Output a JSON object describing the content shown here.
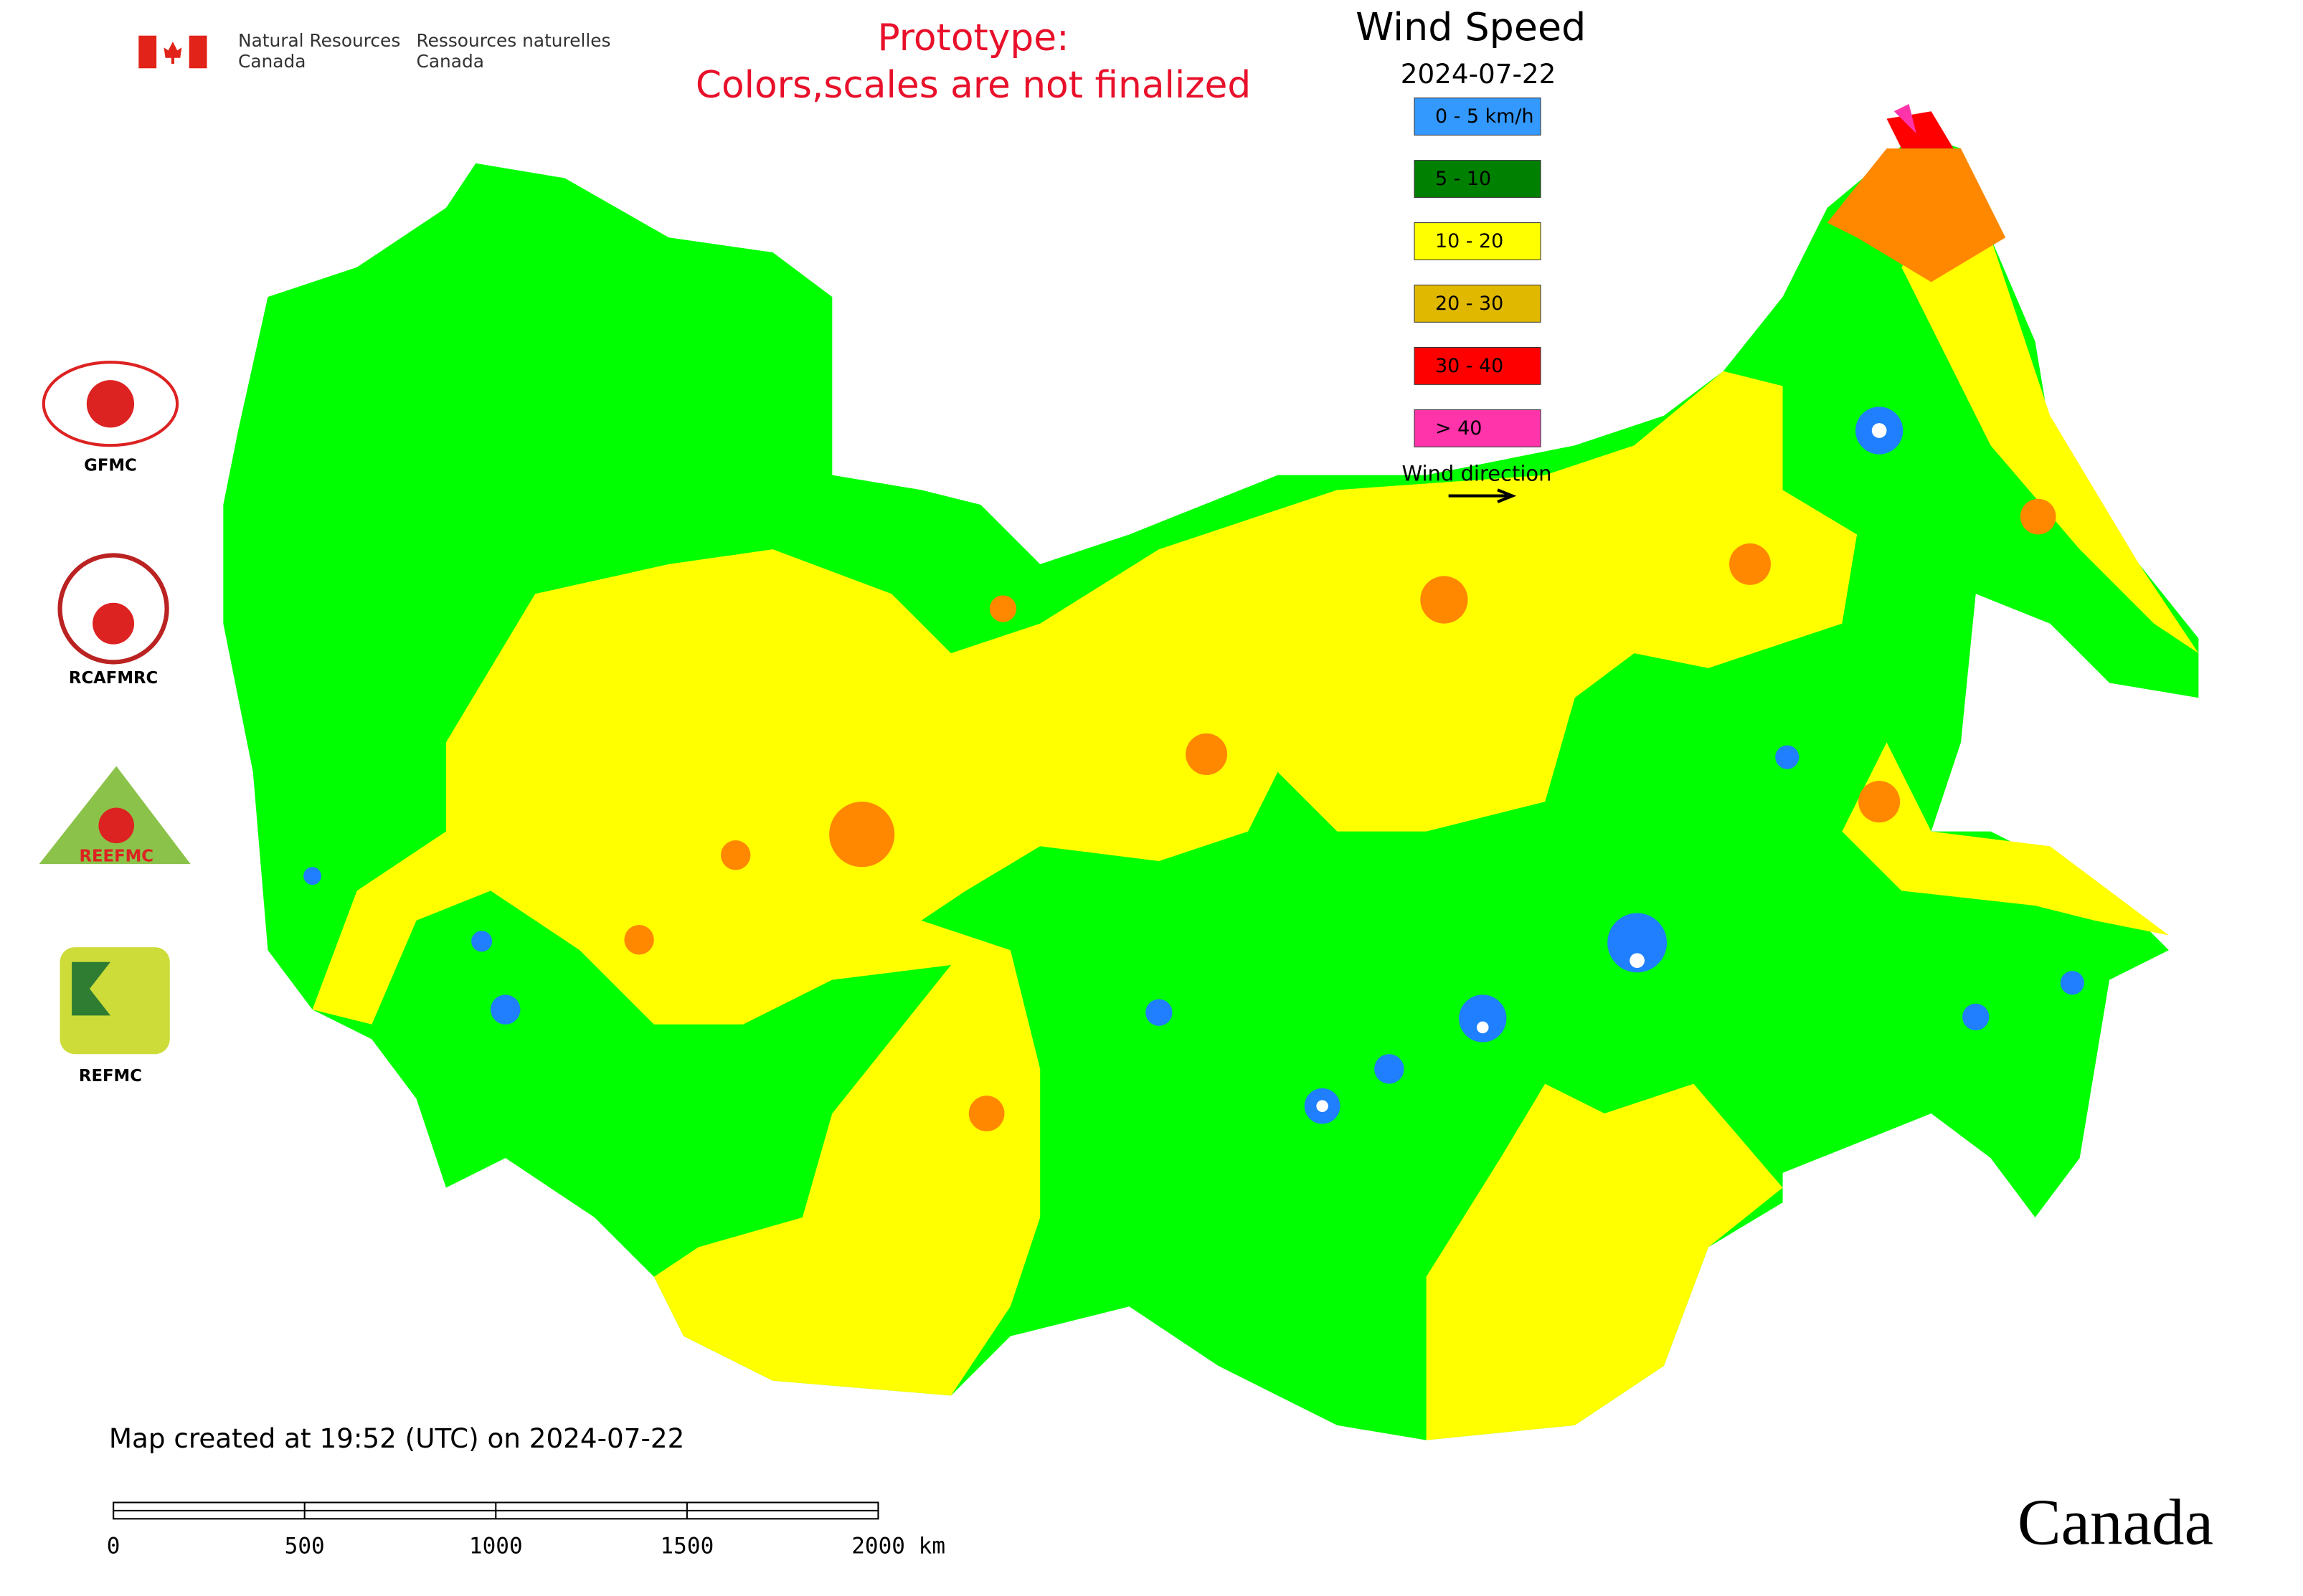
{
  "header": {
    "agency_en": [
      "Natural Resources",
      "Canada"
    ],
    "agency_fr": [
      "Ressources naturelles",
      "Canada"
    ],
    "prototype_note": [
      "Prototype:",
      "Colors,scales are not finalized"
    ]
  },
  "legend": {
    "title": "Wind Speed",
    "date": "2024-07-22",
    "items": [
      {
        "label": "0 - 5 km/h",
        "color": "#3399ff"
      },
      {
        "label": "5 - 10",
        "color": "#008000"
      },
      {
        "label": "10 - 20",
        "color": "#ffff00"
      },
      {
        "label": "20 - 30",
        "color": "#e0b800"
      },
      {
        "label": "30 - 40",
        "color": "#ff0000"
      },
      {
        "label": "> 40",
        "color": "#ff33aa"
      }
    ],
    "wind_direction": "Wind direction"
  },
  "logos": [
    "GFMC",
    "RCAFMRC",
    "REEFMC",
    "REFMC"
  ],
  "footer": {
    "created": "Map created at 19:52 (UTC) on 2024-07-22",
    "scale_labels": [
      "0",
      "500",
      "1000",
      "1500",
      "2000 km"
    ],
    "wordmark": "Canada"
  }
}
